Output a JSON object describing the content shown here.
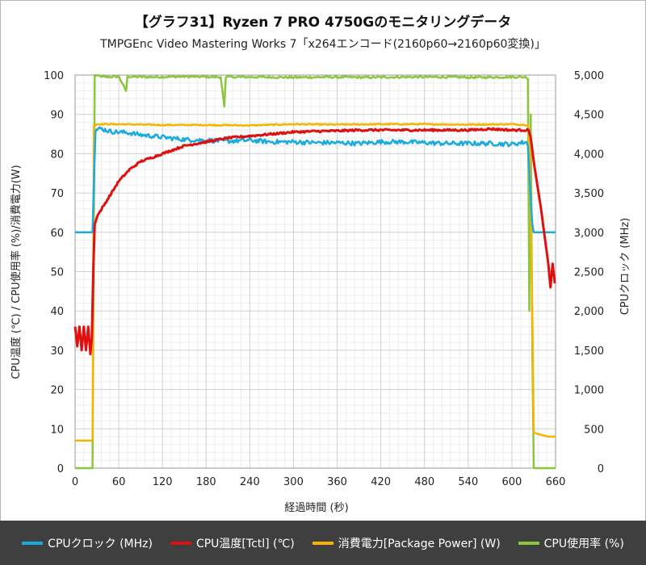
{
  "chart_data": {
    "type": "line",
    "title": "【グラフ31】Ryzen 7 PRO 4750Gのモニタリングデータ",
    "subtitle": "TMPGEnc Video Mastering Works 7「x264エンコード(2160p60→2160p60変換)」",
    "xlabel": "経過時間 (秒)",
    "ylabel_left": "CPU温度 (℃) / CPU使用率 (%)/消費電力(W)",
    "ylabel_right": "CPUクロック (MHz)",
    "xlim": [
      0,
      660
    ],
    "ylim_left": [
      0,
      100
    ],
    "ylim_right": [
      0,
      5000
    ],
    "x_ticks": [
      "0",
      "60",
      "120",
      "180",
      "240",
      "300",
      "360",
      "420",
      "480",
      "540",
      "600",
      "660"
    ],
    "y_left_ticks": [
      "0",
      "10",
      "20",
      "30",
      "40",
      "50",
      "60",
      "70",
      "80",
      "90",
      "100"
    ],
    "y_right_ticks": [
      "0",
      "500",
      "1,000",
      "1,500",
      "2,000",
      "2,500",
      "3,000",
      "3,500",
      "4,000",
      "4,500",
      "5,000"
    ],
    "grid": true,
    "legend_position": "bottom",
    "series": [
      {
        "name": "CPUクロック (MHz)",
        "axis": "right",
        "color": "#1aabe0",
        "points": [
          [
            0,
            3000
          ],
          [
            22,
            3000
          ],
          [
            24,
            3000
          ],
          [
            28,
            4300
          ],
          [
            35,
            4320
          ],
          [
            50,
            4280
          ],
          [
            70,
            4270
          ],
          [
            90,
            4240
          ],
          [
            110,
            4220
          ],
          [
            130,
            4200
          ],
          [
            150,
            4180
          ],
          [
            180,
            4170
          ],
          [
            210,
            4160
          ],
          [
            240,
            4170
          ],
          [
            270,
            4150
          ],
          [
            300,
            4150
          ],
          [
            330,
            4140
          ],
          [
            360,
            4140
          ],
          [
            390,
            4130
          ],
          [
            420,
            4150
          ],
          [
            450,
            4150
          ],
          [
            480,
            4140
          ],
          [
            510,
            4130
          ],
          [
            540,
            4130
          ],
          [
            570,
            4130
          ],
          [
            600,
            4120
          ],
          [
            620,
            4150
          ],
          [
            622,
            4100
          ],
          [
            628,
            3100
          ],
          [
            630,
            3000
          ],
          [
            660,
            3000
          ]
        ]
      },
      {
        "name": "CPU温度[Tctl] (℃)",
        "axis": "left",
        "color": "#e01010",
        "points": [
          [
            0,
            36
          ],
          [
            3,
            31
          ],
          [
            6,
            36
          ],
          [
            9,
            30
          ],
          [
            12,
            36
          ],
          [
            15,
            30
          ],
          [
            18,
            36
          ],
          [
            21,
            29
          ],
          [
            23,
            33
          ],
          [
            25,
            50
          ],
          [
            27,
            62
          ],
          [
            30,
            64
          ],
          [
            40,
            67
          ],
          [
            50,
            70
          ],
          [
            60,
            73
          ],
          [
            75,
            76
          ],
          [
            90,
            78
          ],
          [
            105,
            79
          ],
          [
            120,
            80
          ],
          [
            150,
            82
          ],
          [
            180,
            83
          ],
          [
            210,
            84
          ],
          [
            240,
            84.5
          ],
          [
            270,
            85
          ],
          [
            300,
            85.5
          ],
          [
            330,
            85.7
          ],
          [
            360,
            85.8
          ],
          [
            390,
            86
          ],
          [
            420,
            86
          ],
          [
            450,
            86
          ],
          [
            480,
            86
          ],
          [
            510,
            86
          ],
          [
            540,
            86
          ],
          [
            570,
            86.3
          ],
          [
            600,
            86
          ],
          [
            623,
            86
          ],
          [
            626,
            84
          ],
          [
            630,
            78
          ],
          [
            640,
            66
          ],
          [
            650,
            52
          ],
          [
            653,
            46
          ],
          [
            656,
            52
          ],
          [
            659,
            47
          ]
        ]
      },
      {
        "name": "消費電力[Package Power] (W)",
        "axis": "left",
        "color": "#f5b400",
        "points": [
          [
            0,
            7
          ],
          [
            22,
            7
          ],
          [
            24,
            7.2
          ],
          [
            26,
            87
          ],
          [
            30,
            87.5
          ],
          [
            60,
            87.5
          ],
          [
            120,
            87.3
          ],
          [
            180,
            87.3
          ],
          [
            240,
            87.2
          ],
          [
            300,
            87.5
          ],
          [
            360,
            87.4
          ],
          [
            420,
            87.5
          ],
          [
            480,
            87.5
          ],
          [
            540,
            87.4
          ],
          [
            600,
            87.5
          ],
          [
            622,
            87.3
          ],
          [
            625,
            80
          ],
          [
            628,
            40
          ],
          [
            630,
            9
          ],
          [
            640,
            8.5
          ],
          [
            650,
            8
          ],
          [
            660,
            8
          ]
        ]
      },
      {
        "name": "CPU使用率 (%)",
        "axis": "left",
        "color": "#8cc63f",
        "points": [
          [
            0,
            0
          ],
          [
            22,
            0
          ],
          [
            24,
            0
          ],
          [
            27,
            100
          ],
          [
            40,
            99.5
          ],
          [
            60,
            99.6
          ],
          [
            70,
            96
          ],
          [
            72,
            99.6
          ],
          [
            100,
            99.5
          ],
          [
            150,
            99.6
          ],
          [
            200,
            99.5
          ],
          [
            205,
            92
          ],
          [
            207,
            99.5
          ],
          [
            250,
            99.5
          ],
          [
            300,
            99.4
          ],
          [
            350,
            99.5
          ],
          [
            400,
            99.4
          ],
          [
            450,
            99.5
          ],
          [
            500,
            99.5
          ],
          [
            550,
            99.4
          ],
          [
            600,
            99.5
          ],
          [
            620,
            99.5
          ],
          [
            622,
            99
          ],
          [
            624,
            40
          ],
          [
            626,
            90
          ],
          [
            628,
            30
          ],
          [
            630,
            0
          ],
          [
            660,
            0
          ]
        ]
      }
    ]
  },
  "legend": {
    "items": [
      {
        "label": "CPUクロック (MHz)",
        "color": "#1aabe0"
      },
      {
        "label": "CPU温度[Tctl] (℃)",
        "color": "#e01010"
      },
      {
        "label": "消費電力[Package Power] (W)",
        "color": "#f5b400"
      },
      {
        "label": "CPU使用率 (%)",
        "color": "#8cc63f"
      }
    ]
  }
}
